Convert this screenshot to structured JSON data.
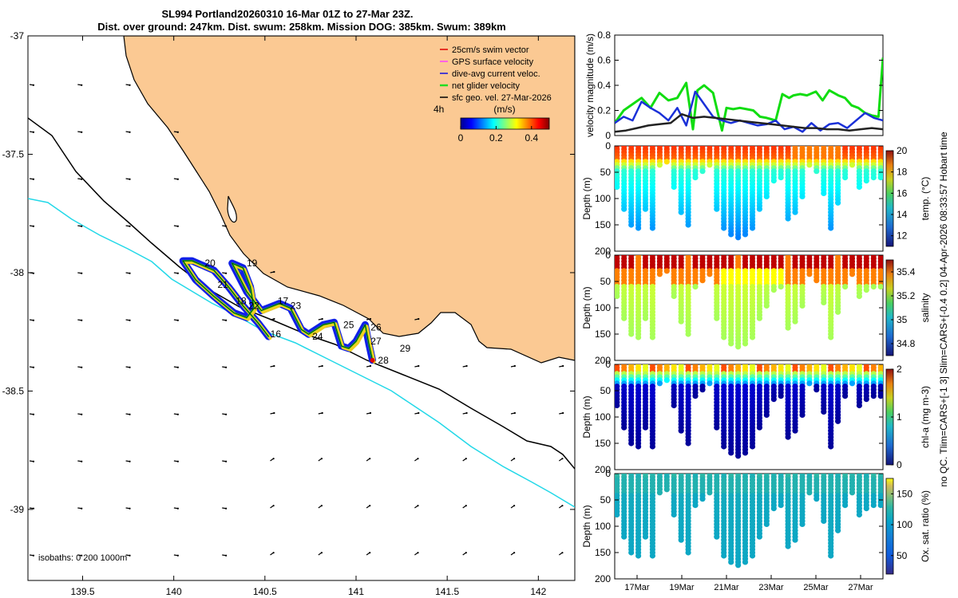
{
  "title": {
    "line1": "SL994 Portland20260310 16-Mar 01Z to 27-Mar 23Z.",
    "line2": "Dist. over ground: 247km. Dist. swum: 258km. Mission DOG: 385km. Swum: 389km"
  },
  "side_note": "no QC. Tlim=CARS+[-1 3] Slim=CARS+[-0.4 0.2] 04-Apr-2026 08:33:57 Hobart time",
  "colors": {
    "land": "#fbc993",
    "isobath_200": "#000000",
    "isobath_1000": "#22d8e8",
    "track_blue": "#1020e8",
    "track_yellow": "#f0d020",
    "track_green": "#22cc22",
    "gray_line": "#222222"
  },
  "chart_data": [
    {
      "type": "map",
      "xlim": [
        139.2,
        142.2
      ],
      "ylim": [
        -39.3,
        -37
      ],
      "xticks": [
        "139.5",
        "140",
        "140.5",
        "141",
        "141.5",
        "142"
      ],
      "xtick_values": [
        139.5,
        140,
        140.5,
        141,
        141.5,
        142
      ],
      "yticks": [
        "-37",
        "-37.5",
        "-38",
        "-38.5",
        "-39"
      ],
      "ytick_values": [
        -37,
        -37.5,
        -38,
        -38.5,
        -39
      ],
      "isobaths_label": "isobaths: 0   200   1000m",
      "legend": [
        {
          "label": "25cm/s swim vector",
          "color": "#e00000"
        },
        {
          "label": "GPS surface velocity",
          "color": "#ff40ff"
        },
        {
          "label": "dive-avg current veloc.",
          "color": "#1010e0"
        },
        {
          "label": "net glider velocity",
          "color": "#22dd22"
        },
        {
          "label": "sfc geo. vel. 27-Mar-2026",
          "color": "#000000"
        }
      ],
      "colorbar": {
        "unit_label": "(m/s)",
        "note": "4h",
        "ticks": [
          "0",
          "0.2",
          "0.4"
        ],
        "tick_values": [
          0,
          0.2,
          0.4
        ],
        "range": [
          0,
          0.5
        ]
      },
      "day_labels": [
        {
          "text": "20",
          "lon": 140.17,
          "lat": -37.96
        },
        {
          "text": "19",
          "lon": 140.4,
          "lat": -37.96
        },
        {
          "text": "21",
          "lon": 140.24,
          "lat": -38.05
        },
        {
          "text": "18",
          "lon": 140.34,
          "lat": -38.12
        },
        {
          "text": "22",
          "lon": 140.41,
          "lat": -38.14
        },
        {
          "text": "17",
          "lon": 140.57,
          "lat": -38.12
        },
        {
          "text": "23",
          "lon": 140.64,
          "lat": -38.14
        },
        {
          "text": "16",
          "lon": 140.53,
          "lat": -38.26
        },
        {
          "text": "24",
          "lon": 140.76,
          "lat": -38.27
        },
        {
          "text": "25",
          "lon": 140.93,
          "lat": -38.22
        },
        {
          "text": "26",
          "lon": 141.08,
          "lat": -38.23
        },
        {
          "text": "27",
          "lon": 141.08,
          "lat": -38.29
        },
        {
          "text": "28",
          "lon": 141.12,
          "lat": -38.37
        },
        {
          "text": "29",
          "lon": 141.24,
          "lat": -38.32
        }
      ],
      "glider_track": [
        [
          140.52,
          -38.27
        ],
        [
          140.46,
          -38.21
        ],
        [
          140.38,
          -38.14
        ],
        [
          140.3,
          -38.06
        ],
        [
          140.22,
          -37.99
        ],
        [
          140.1,
          -37.95
        ],
        [
          140.05,
          -37.95
        ],
        [
          140.12,
          -38.03
        ],
        [
          140.22,
          -38.1
        ],
        [
          140.33,
          -38.17
        ],
        [
          140.4,
          -38.19
        ],
        [
          140.44,
          -38.15
        ],
        [
          140.42,
          -38.06
        ],
        [
          140.38,
          -37.98
        ],
        [
          140.32,
          -37.96
        ],
        [
          140.4,
          -38.08
        ],
        [
          140.48,
          -38.16
        ],
        [
          140.58,
          -38.13
        ],
        [
          140.64,
          -38.15
        ],
        [
          140.7,
          -38.24
        ],
        [
          140.74,
          -38.26
        ],
        [
          140.82,
          -38.22
        ],
        [
          140.88,
          -38.21
        ],
        [
          140.92,
          -38.31
        ],
        [
          140.96,
          -38.32
        ],
        [
          141.0,
          -38.29
        ],
        [
          141.05,
          -38.22
        ],
        [
          141.07,
          -38.3
        ],
        [
          141.09,
          -38.37
        ]
      ]
    },
    {
      "type": "line",
      "ylabel": "velocity magnitude (m/s)",
      "ylim": [
        0,
        0.8
      ],
      "yticks": [
        "0",
        "0.2",
        "0.4",
        "0.6",
        "0.8"
      ],
      "ytick_values": [
        0,
        0.2,
        0.4,
        0.6,
        0.8
      ],
      "xlim_days": [
        16.0,
        28.0
      ],
      "series": [
        {
          "name": "net glider velocity",
          "color": "#11dd11",
          "x": [
            16.0,
            16.4,
            16.8,
            17.2,
            17.6,
            18.0,
            18.4,
            18.8,
            19.2,
            19.5,
            19.7,
            20.0,
            20.4,
            20.8,
            21.0,
            21.3,
            21.6,
            21.9,
            22.2,
            22.5,
            22.8,
            23.0,
            23.2,
            23.5,
            23.8,
            24.0,
            24.3,
            24.6,
            25.0,
            25.3,
            25.6,
            26.0,
            26.3,
            26.6,
            26.9,
            27.2,
            27.5,
            27.8,
            28.0
          ],
          "y": [
            0.1,
            0.2,
            0.25,
            0.3,
            0.22,
            0.34,
            0.28,
            0.3,
            0.42,
            0.05,
            0.36,
            0.4,
            0.34,
            0.04,
            0.22,
            0.21,
            0.22,
            0.21,
            0.2,
            0.15,
            0.14,
            0.13,
            0.12,
            0.33,
            0.3,
            0.32,
            0.33,
            0.32,
            0.35,
            0.28,
            0.36,
            0.32,
            0.3,
            0.24,
            0.22,
            0.18,
            0.16,
            0.15,
            0.62
          ]
        },
        {
          "name": "dive-avg current veloc.",
          "color": "#1a30d8",
          "x": [
            16.0,
            16.4,
            16.8,
            17.2,
            17.6,
            18.0,
            18.4,
            18.8,
            19.2,
            19.6,
            20.0,
            20.4,
            20.8,
            21.2,
            21.6,
            22.0,
            22.4,
            22.8,
            23.2,
            23.6,
            24.0,
            24.4,
            24.8,
            25.2,
            25.6,
            26.0,
            26.4,
            26.8,
            27.2,
            27.6,
            28.0
          ],
          "y": [
            0.1,
            0.15,
            0.12,
            0.27,
            0.22,
            0.18,
            0.12,
            0.22,
            0.08,
            0.35,
            0.25,
            0.15,
            0.12,
            0.1,
            0.12,
            0.1,
            0.08,
            0.09,
            0.12,
            0.05,
            0.07,
            0.03,
            0.1,
            0.04,
            0.09,
            0.1,
            0.06,
            0.12,
            0.18,
            0.14,
            0.12
          ]
        },
        {
          "name": "sfc geo. vel.",
          "color": "#222222",
          "x": [
            16.0,
            16.5,
            17.0,
            17.5,
            18.0,
            18.5,
            19.0,
            19.5,
            20.0,
            20.5,
            21.0,
            21.5,
            22.0,
            22.5,
            23.0,
            23.5,
            24.0,
            24.5,
            25.0,
            25.5,
            26.0,
            26.5,
            27.0,
            27.5,
            28.0
          ],
          "y": [
            0.03,
            0.04,
            0.06,
            0.08,
            0.09,
            0.1,
            0.17,
            0.14,
            0.15,
            0.14,
            0.13,
            0.12,
            0.11,
            0.1,
            0.09,
            0.08,
            0.07,
            0.06,
            0.06,
            0.05,
            0.05,
            0.04,
            0.05,
            0.06,
            0.05
          ]
        }
      ]
    },
    {
      "type": "scatter",
      "variable": "temp. (°C)",
      "ylabel": "Depth (m)",
      "ylim": [
        200,
        0
      ],
      "yticks": [
        "0",
        "50",
        "100",
        "150",
        "200"
      ],
      "ytick_values": [
        0,
        50,
        100,
        150,
        200
      ],
      "colorbar_range": [
        11,
        20
      ],
      "colorbar_ticks": [
        "12",
        "14",
        "16",
        "18",
        "20"
      ],
      "colorbar_tick_values": [
        12,
        14,
        16,
        18,
        20
      ],
      "profile_depth_max": [
        80,
        120,
        150,
        160,
        120,
        160,
        40,
        30,
        80,
        130,
        150,
        60,
        50,
        40,
        120,
        160,
        170,
        175,
        170,
        160,
        120,
        100,
        70,
        60,
        140,
        130,
        100,
        40,
        50,
        90,
        160,
        110,
        60,
        40,
        80,
        70,
        60,
        60
      ],
      "surface_value": 18.5,
      "thermocline_depth": 25,
      "deep_value": 13
    },
    {
      "type": "scatter",
      "variable": "salinity",
      "ylabel": "Depth (m)",
      "ylim": [
        200,
        0
      ],
      "yticks": [
        "0",
        "50",
        "100",
        "150",
        "200"
      ],
      "ytick_values": [
        0,
        50,
        100,
        150,
        200
      ],
      "colorbar_range": [
        34.7,
        35.5
      ],
      "colorbar_ticks": [
        "34.8",
        "35",
        "35.2",
        "35.4"
      ],
      "colorbar_tick_values": [
        34.8,
        35.0,
        35.2,
        35.4
      ],
      "surface_value": 35.45,
      "deep_value": 35.15
    },
    {
      "type": "scatter",
      "variable": "chl-a (mg m-3)",
      "ylabel": "Depth (m)",
      "ylim": [
        200,
        0
      ],
      "yticks": [
        "0",
        "50",
        "100",
        "150",
        "200"
      ],
      "ytick_values": [
        0,
        50,
        100,
        150,
        200
      ],
      "colorbar_range": [
        0,
        2
      ],
      "colorbar_ticks": [
        "0",
        "1",
        "2"
      ],
      "colorbar_tick_values": [
        0,
        1,
        2
      ],
      "surface_value": 1.6,
      "deep_value": 0.1
    },
    {
      "type": "scatter",
      "variable": "Ox. sat. ratio (%)",
      "ylabel": "Depth (m)",
      "ylim": [
        200,
        0
      ],
      "yticks": [
        "0",
        "50",
        "100",
        "150",
        "200"
      ],
      "ytick_values": [
        0,
        50,
        100,
        150,
        200
      ],
      "colorbar_range": [
        20,
        175
      ],
      "colorbar_ticks": [
        "50",
        "100",
        "150"
      ],
      "colorbar_tick_values": [
        50,
        100,
        150
      ],
      "surface_value": 105,
      "deep_value": 92,
      "xtick_labels": [
        "17Mar",
        "19Mar",
        "21Mar",
        "23Mar",
        "25Mar",
        "27Mar"
      ],
      "xtick_days": [
        17,
        19,
        21,
        23,
        25,
        27
      ]
    }
  ]
}
